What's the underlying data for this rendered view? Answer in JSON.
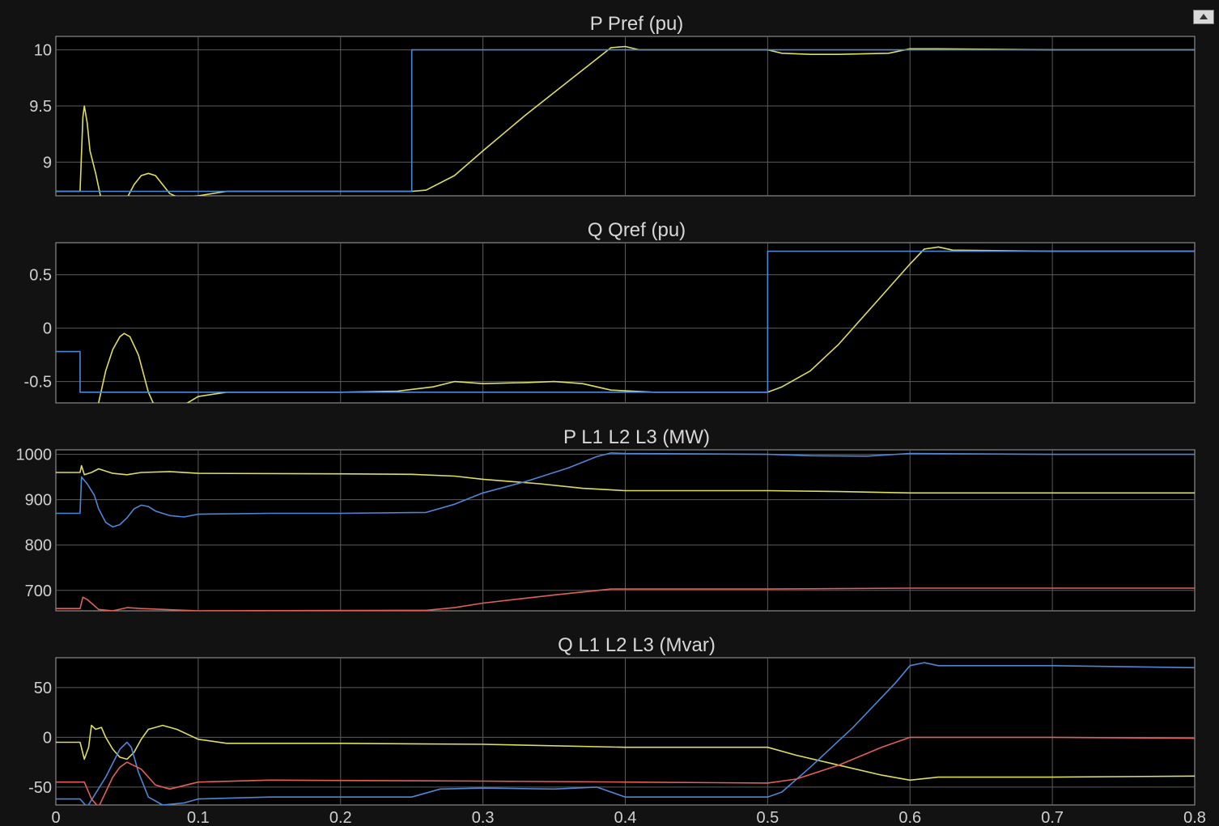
{
  "window": {
    "restore_icon": "restore-axes-icon"
  },
  "colors": {
    "background": "#121212",
    "axes": "#000000",
    "grid": "#5c5c5c",
    "frame": "#8a8a8a",
    "text": "#d0d0d0"
  },
  "chart_data": [
    {
      "type": "line",
      "title": "P Pref (pu)",
      "xlim": [
        0,
        0.8
      ],
      "ylim": [
        8.7,
        10.12
      ],
      "yticks": [
        9,
        9.5,
        10
      ],
      "ytick_labels": [
        "9",
        "9.5",
        "10"
      ],
      "xticks": [
        0,
        0.1,
        0.2,
        0.3,
        0.4,
        0.5,
        0.6,
        0.7,
        0.8
      ],
      "grid": true,
      "series": [
        {
          "color": "#dede60",
          "points": [
            [
              0,
              8.74
            ],
            [
              0.017,
              8.74
            ],
            [
              0.019,
              9.4
            ],
            [
              0.02,
              9.5
            ],
            [
              0.022,
              9.35
            ],
            [
              0.024,
              9.1
            ],
            [
              0.028,
              8.9
            ],
            [
              0.031,
              8.72
            ],
            [
              0.035,
              8.5
            ],
            [
              0.04,
              8.45
            ],
            [
              0.045,
              8.55
            ],
            [
              0.05,
              8.68
            ],
            [
              0.055,
              8.8
            ],
            [
              0.06,
              8.88
            ],
            [
              0.065,
              8.9
            ],
            [
              0.07,
              8.88
            ],
            [
              0.075,
              8.8
            ],
            [
              0.08,
              8.72
            ],
            [
              0.087,
              8.68
            ],
            [
              0.1,
              8.7
            ],
            [
              0.12,
              8.74
            ],
            [
              0.15,
              8.74
            ],
            [
              0.2,
              8.74
            ],
            [
              0.25,
              8.74
            ],
            [
              0.26,
              8.75
            ],
            [
              0.28,
              8.88
            ],
            [
              0.3,
              9.1
            ],
            [
              0.33,
              9.42
            ],
            [
              0.36,
              9.72
            ],
            [
              0.38,
              9.92
            ],
            [
              0.39,
              10.02
            ],
            [
              0.4,
              10.03
            ],
            [
              0.41,
              10.0
            ],
            [
              0.45,
              10.0
            ],
            [
              0.5,
              10.0
            ],
            [
              0.51,
              9.97
            ],
            [
              0.53,
              9.96
            ],
            [
              0.55,
              9.96
            ],
            [
              0.585,
              9.97
            ],
            [
              0.6,
              10.01
            ],
            [
              0.62,
              10.01
            ],
            [
              0.7,
              10.0
            ],
            [
              0.8,
              10.0
            ]
          ]
        },
        {
          "color": "#4f86d6",
          "points": [
            [
              0,
              8.74
            ],
            [
              0.25,
              8.74
            ],
            [
              0.25,
              10.0
            ],
            [
              0.8,
              10.0
            ]
          ]
        }
      ]
    },
    {
      "type": "line",
      "title": "Q Qref (pu)",
      "xlim": [
        0,
        0.8
      ],
      "ylim": [
        -0.7,
        0.8
      ],
      "yticks": [
        -0.5,
        0,
        0.5
      ],
      "ytick_labels": [
        "-0.5",
        "0",
        "0.5"
      ],
      "xticks": [
        0,
        0.1,
        0.2,
        0.3,
        0.4,
        0.5,
        0.6,
        0.7,
        0.8
      ],
      "grid": true,
      "series": [
        {
          "color": "#dede60",
          "points": [
            [
              0.03,
              -0.7
            ],
            [
              0.035,
              -0.4
            ],
            [
              0.04,
              -0.2
            ],
            [
              0.045,
              -0.08
            ],
            [
              0.048,
              -0.05
            ],
            [
              0.052,
              -0.08
            ],
            [
              0.058,
              -0.25
            ],
            [
              0.065,
              -0.6
            ],
            [
              0.07,
              -0.75
            ],
            [
              0.09,
              -0.72
            ],
            [
              0.1,
              -0.64
            ],
            [
              0.12,
              -0.6
            ],
            [
              0.2,
              -0.6
            ],
            [
              0.24,
              -0.59
            ],
            [
              0.265,
              -0.55
            ],
            [
              0.28,
              -0.5
            ],
            [
              0.3,
              -0.52
            ],
            [
              0.33,
              -0.51
            ],
            [
              0.35,
              -0.5
            ],
            [
              0.37,
              -0.52
            ],
            [
              0.39,
              -0.58
            ],
            [
              0.42,
              -0.6
            ],
            [
              0.5,
              -0.6
            ],
            [
              0.51,
              -0.55
            ],
            [
              0.53,
              -0.4
            ],
            [
              0.55,
              -0.15
            ],
            [
              0.58,
              0.3
            ],
            [
              0.6,
              0.6
            ],
            [
              0.61,
              0.74
            ],
            [
              0.62,
              0.76
            ],
            [
              0.63,
              0.73
            ],
            [
              0.7,
              0.72
            ],
            [
              0.8,
              0.72
            ]
          ]
        },
        {
          "color": "#4f86d6",
          "points": [
            [
              0,
              -0.22
            ],
            [
              0.017,
              -0.22
            ],
            [
              0.017,
              -0.6
            ],
            [
              0.5,
              -0.6
            ],
            [
              0.5,
              0.72
            ],
            [
              0.8,
              0.72
            ]
          ]
        }
      ]
    },
    {
      "type": "line",
      "title": "P L1 L2 L3 (MW)",
      "xlim": [
        0,
        0.8
      ],
      "ylim": [
        655,
        1010
      ],
      "yticks": [
        700,
        800,
        900,
        1000
      ],
      "ytick_labels": [
        "700",
        "800",
        "900",
        "1000"
      ],
      "xticks": [
        0,
        0.1,
        0.2,
        0.3,
        0.4,
        0.5,
        0.6,
        0.7,
        0.8
      ],
      "grid": true,
      "series": [
        {
          "color": "#dede60",
          "points": [
            [
              0,
              960
            ],
            [
              0.017,
              960
            ],
            [
              0.018,
              975
            ],
            [
              0.02,
              955
            ],
            [
              0.025,
              960
            ],
            [
              0.03,
              968
            ],
            [
              0.04,
              958
            ],
            [
              0.05,
              955
            ],
            [
              0.06,
              960
            ],
            [
              0.08,
              962
            ],
            [
              0.1,
              958
            ],
            [
              0.2,
              957
            ],
            [
              0.25,
              956
            ],
            [
              0.28,
              952
            ],
            [
              0.3,
              945
            ],
            [
              0.34,
              935
            ],
            [
              0.37,
              925
            ],
            [
              0.4,
              920
            ],
            [
              0.5,
              920
            ],
            [
              0.55,
              918
            ],
            [
              0.6,
              915
            ],
            [
              0.7,
              915
            ],
            [
              0.8,
              915
            ]
          ]
        },
        {
          "color": "#4f86d6",
          "points": [
            [
              0,
              870
            ],
            [
              0.017,
              870
            ],
            [
              0.018,
              950
            ],
            [
              0.022,
              935
            ],
            [
              0.027,
              910
            ],
            [
              0.03,
              880
            ],
            [
              0.035,
              850
            ],
            [
              0.04,
              840
            ],
            [
              0.045,
              845
            ],
            [
              0.05,
              860
            ],
            [
              0.055,
              880
            ],
            [
              0.06,
              888
            ],
            [
              0.065,
              885
            ],
            [
              0.07,
              875
            ],
            [
              0.08,
              865
            ],
            [
              0.09,
              862
            ],
            [
              0.1,
              868
            ],
            [
              0.15,
              870
            ],
            [
              0.2,
              870
            ],
            [
              0.26,
              872
            ],
            [
              0.28,
              890
            ],
            [
              0.3,
              915
            ],
            [
              0.33,
              940
            ],
            [
              0.36,
              970
            ],
            [
              0.38,
              995
            ],
            [
              0.39,
              1003
            ],
            [
              0.4,
              1002
            ],
            [
              0.5,
              1000
            ],
            [
              0.53,
              997
            ],
            [
              0.57,
              996
            ],
            [
              0.6,
              1002
            ],
            [
              0.7,
              1000
            ],
            [
              0.8,
              1000
            ]
          ]
        },
        {
          "color": "#e0605a",
          "points": [
            [
              0,
              660
            ],
            [
              0.017,
              660
            ],
            [
              0.019,
              685
            ],
            [
              0.022,
              680
            ],
            [
              0.03,
              658
            ],
            [
              0.04,
              655
            ],
            [
              0.05,
              662
            ],
            [
              0.06,
              660
            ],
            [
              0.1,
              655
            ],
            [
              0.26,
              656
            ],
            [
              0.28,
              662
            ],
            [
              0.3,
              672
            ],
            [
              0.35,
              690
            ],
            [
              0.39,
              703
            ],
            [
              0.4,
              703
            ],
            [
              0.5,
              703
            ],
            [
              0.6,
              705
            ],
            [
              0.8,
              705
            ]
          ]
        }
      ]
    },
    {
      "type": "line",
      "title": "Q L1 L2 L3 (Mvar)",
      "xlim": [
        0,
        0.8
      ],
      "ylim": [
        -68,
        80
      ],
      "yticks": [
        -50,
        0,
        50
      ],
      "ytick_labels": [
        "-50",
        "0",
        "50"
      ],
      "xticks": [
        0,
        0.1,
        0.2,
        0.3,
        0.4,
        0.5,
        0.6,
        0.7,
        0.8
      ],
      "xtick_labels": [
        "0",
        "0.1",
        "0.2",
        "0.3",
        "0.4",
        "0.5",
        "0.6",
        "0.7",
        "0.8"
      ],
      "grid": true,
      "series": [
        {
          "color": "#dede60",
          "points": [
            [
              0,
              -5
            ],
            [
              0.017,
              -5
            ],
            [
              0.02,
              -22
            ],
            [
              0.023,
              -10
            ],
            [
              0.025,
              12
            ],
            [
              0.028,
              8
            ],
            [
              0.032,
              10
            ],
            [
              0.035,
              0
            ],
            [
              0.04,
              -12
            ],
            [
              0.045,
              -20
            ],
            [
              0.05,
              -22
            ],
            [
              0.055,
              -15
            ],
            [
              0.06,
              -2
            ],
            [
              0.065,
              8
            ],
            [
              0.07,
              10
            ],
            [
              0.075,
              12
            ],
            [
              0.085,
              8
            ],
            [
              0.1,
              -2
            ],
            [
              0.12,
              -6
            ],
            [
              0.2,
              -6
            ],
            [
              0.3,
              -7
            ],
            [
              0.4,
              -10
            ],
            [
              0.5,
              -10
            ],
            [
              0.52,
              -18
            ],
            [
              0.55,
              -28
            ],
            [
              0.58,
              -38
            ],
            [
              0.6,
              -43
            ],
            [
              0.62,
              -40
            ],
            [
              0.7,
              -40
            ],
            [
              0.8,
              -39
            ]
          ]
        },
        {
          "color": "#4f86d6",
          "points": [
            [
              0,
              -62
            ],
            [
              0.017,
              -62
            ],
            [
              0.022,
              -70
            ],
            [
              0.035,
              -40
            ],
            [
              0.045,
              -12
            ],
            [
              0.05,
              -5
            ],
            [
              0.053,
              -10
            ],
            [
              0.058,
              -35
            ],
            [
              0.065,
              -60
            ],
            [
              0.075,
              -68
            ],
            [
              0.09,
              -66
            ],
            [
              0.1,
              -62
            ],
            [
              0.15,
              -60
            ],
            [
              0.25,
              -60
            ],
            [
              0.27,
              -52
            ],
            [
              0.3,
              -51
            ],
            [
              0.35,
              -52
            ],
            [
              0.38,
              -50
            ],
            [
              0.4,
              -60
            ],
            [
              0.5,
              -60
            ],
            [
              0.51,
              -55
            ],
            [
              0.53,
              -30
            ],
            [
              0.56,
              10
            ],
            [
              0.59,
              55
            ],
            [
              0.6,
              72
            ],
            [
              0.61,
              75
            ],
            [
              0.62,
              72
            ],
            [
              0.7,
              72
            ],
            [
              0.8,
              70
            ]
          ]
        },
        {
          "color": "#e0605a",
          "points": [
            [
              0,
              -45
            ],
            [
              0.02,
              -45
            ],
            [
              0.025,
              -62
            ],
            [
              0.03,
              -70
            ],
            [
              0.035,
              -55
            ],
            [
              0.04,
              -40
            ],
            [
              0.045,
              -30
            ],
            [
              0.05,
              -25
            ],
            [
              0.06,
              -32
            ],
            [
              0.07,
              -48
            ],
            [
              0.08,
              -52
            ],
            [
              0.1,
              -45
            ],
            [
              0.15,
              -43
            ],
            [
              0.3,
              -44
            ],
            [
              0.4,
              -45
            ],
            [
              0.5,
              -46
            ],
            [
              0.52,
              -42
            ],
            [
              0.55,
              -28
            ],
            [
              0.58,
              -10
            ],
            [
              0.6,
              0
            ],
            [
              0.7,
              0
            ],
            [
              0.8,
              -1
            ]
          ]
        }
      ]
    }
  ]
}
